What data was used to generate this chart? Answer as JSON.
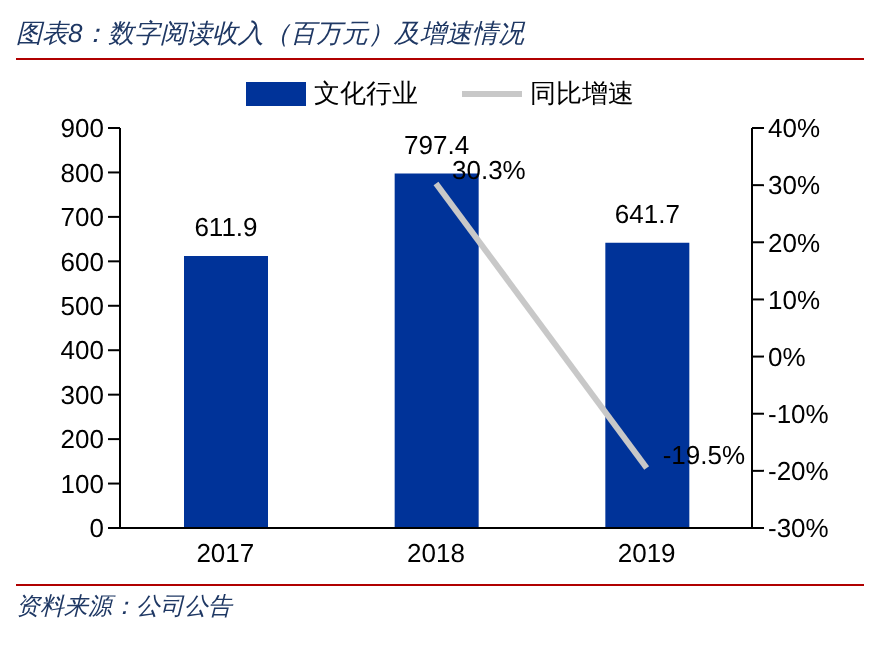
{
  "chart_data": {
    "type": "bar",
    "title": "图表8：数字阅读收入（百万元）及增速情况",
    "annotations": [
      "资料来源：公司公告"
    ],
    "categories": [
      "2017",
      "2018",
      "2019"
    ],
    "series": [
      {
        "name": "文化行业",
        "color": "#003399",
        "values": [
          611.9,
          797.4,
          641.7
        ],
        "value_labels": [
          "611.9",
          "797.4",
          "641.7"
        ]
      },
      {
        "name": "同比增速",
        "type": "line",
        "axis": "y2",
        "color": "#c8c8c8",
        "values": [
          null,
          30.3,
          -19.5
        ],
        "value_labels": [
          null,
          "30.3%",
          "-19.5%"
        ]
      }
    ],
    "ylim": [
      0,
      900
    ],
    "yticks": [
      0,
      100,
      200,
      300,
      400,
      500,
      600,
      700,
      800,
      900
    ],
    "y2lim": [
      -30,
      40
    ],
    "y2ticks": [
      {
        "value": -30,
        "label": "-30%"
      },
      {
        "value": -20,
        "label": "-20%"
      },
      {
        "value": -10,
        "label": "-10%"
      },
      {
        "value": 0,
        "label": "0%"
      },
      {
        "value": 10,
        "label": "10%"
      },
      {
        "value": 20,
        "label": "20%"
      },
      {
        "value": 30,
        "label": "30%"
      },
      {
        "value": 40,
        "label": "40%"
      }
    ],
    "legend": "top",
    "grid": false,
    "marker": "none"
  }
}
